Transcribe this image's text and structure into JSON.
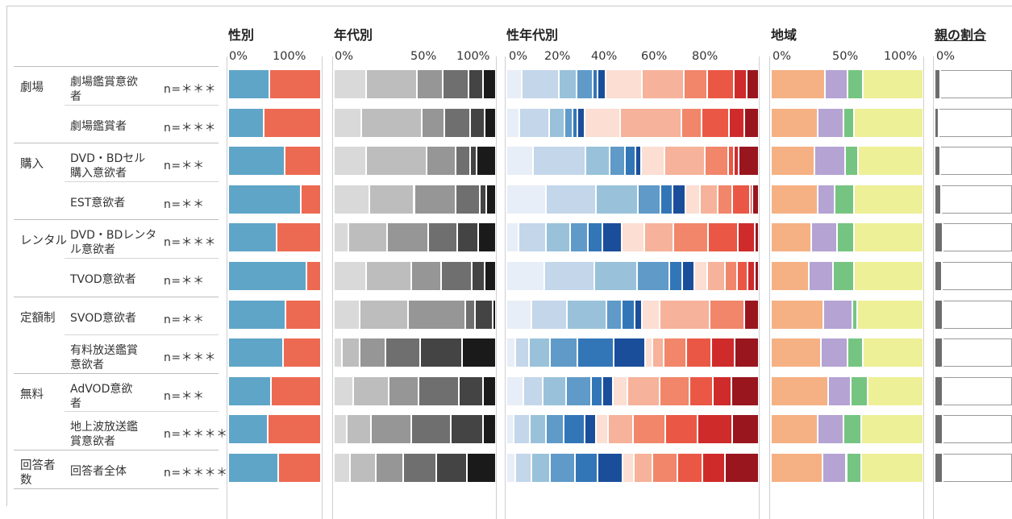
{
  "chart_data": {
    "type": "stacked_bar",
    "panels": [
      {
        "key": "gender",
        "title": "性別",
        "ticks": [
          "0%",
          "100%"
        ],
        "colors": [
          "#5fa5c8",
          "#ed6a52"
        ],
        "rows": [
          [
            45,
            55
          ],
          [
            39,
            61
          ],
          [
            62,
            38
          ],
          [
            80,
            20
          ],
          [
            53,
            47
          ],
          [
            86,
            14
          ],
          [
            63,
            37
          ],
          [
            60,
            40
          ],
          [
            47,
            53
          ],
          [
            43,
            57
          ],
          [
            55,
            45
          ]
        ]
      },
      {
        "key": "age",
        "title": "年代別",
        "ticks": [
          "0%",
          "50%",
          "100%"
        ],
        "colors": [
          "#f5f5f5",
          "#d9d9d9",
          "#bdbdbd",
          "#969696",
          "#6f6f6f",
          "#444444",
          "#1a1a1a"
        ],
        "rows": [
          [
            0,
            20,
            32,
            16,
            16,
            9,
            7
          ],
          [
            0,
            17,
            38,
            14,
            16,
            9,
            6
          ],
          [
            0,
            20,
            38,
            18,
            9,
            4,
            11
          ],
          [
            0,
            22,
            28,
            26,
            15,
            4,
            5
          ],
          [
            0,
            9,
            24,
            26,
            18,
            13,
            10
          ],
          [
            0,
            20,
            28,
            19,
            19,
            8,
            6
          ],
          [
            0,
            16,
            30,
            36,
            6,
            11,
            1
          ],
          [
            0,
            5,
            11,
            16,
            22,
            26,
            20
          ],
          [
            0,
            12,
            22,
            19,
            25,
            15,
            7
          ],
          [
            0,
            8,
            15,
            25,
            25,
            20,
            7
          ],
          [
            0,
            10,
            16,
            17,
            21,
            19,
            17
          ]
        ]
      },
      {
        "key": "gender_age",
        "title": "性年代別",
        "ticks": [
          "0%",
          "20%",
          "40%",
          "60%",
          "80%"
        ],
        "colors": [
          "#e8eef7",
          "#c3d6ea",
          "#99c2da",
          "#5f9ac9",
          "#3376b8",
          "#1a4e9a",
          "#fcded3",
          "#f6b29a",
          "#f1866a",
          "#ea5845",
          "#cf2b2b",
          "#99161f"
        ],
        "rows": [
          [
            6,
            14,
            7,
            6,
            2,
            3,
            14,
            16,
            9,
            10,
            5,
            4
          ],
          [
            5,
            12,
            6,
            3,
            2,
            3,
            14,
            24,
            8,
            11,
            6,
            5
          ],
          [
            10,
            20,
            9,
            6,
            4,
            2,
            9,
            15,
            9,
            2,
            2,
            7
          ],
          [
            16,
            20,
            17,
            9,
            5,
            5,
            6,
            7,
            6,
            7,
            1,
            2
          ],
          [
            5,
            11,
            10,
            7,
            6,
            8,
            9,
            12,
            14,
            12,
            7,
            1
          ],
          [
            15,
            20,
            17,
            13,
            5,
            5,
            5,
            7,
            5,
            4,
            3,
            1
          ],
          [
            10,
            14,
            16,
            6,
            5,
            3,
            7,
            20,
            14,
            0,
            0,
            5
          ],
          [
            4,
            6,
            9,
            12,
            16,
            14,
            3,
            5,
            10,
            11,
            10,
            10
          ],
          [
            8,
            9,
            11,
            12,
            5,
            5,
            7,
            15,
            14,
            11,
            9,
            12
          ],
          [
            3,
            7,
            7,
            8,
            9,
            5,
            5,
            11,
            14,
            14,
            15,
            11
          ],
          [
            4,
            7,
            8,
            11,
            10,
            11,
            5,
            8,
            11,
            11,
            10,
            14
          ]
        ]
      },
      {
        "key": "region",
        "title": "地域",
        "ticks": [
          "0%",
          "50%",
          "100%"
        ],
        "colors": [
          "#f5b183",
          "#b4a3d3",
          "#76c481",
          "#eef097"
        ],
        "rows": [
          [
            36,
            15,
            10,
            39
          ],
          [
            31,
            17,
            7,
            45
          ],
          [
            29,
            20,
            9,
            42
          ],
          [
            31,
            11,
            13,
            45
          ],
          [
            27,
            17,
            11,
            45
          ],
          [
            25,
            16,
            14,
            45
          ],
          [
            35,
            19,
            3,
            43
          ],
          [
            33,
            18,
            10,
            39
          ],
          [
            38,
            15,
            11,
            36
          ],
          [
            31,
            17,
            12,
            40
          ],
          [
            34,
            16,
            10,
            40
          ]
        ]
      },
      {
        "key": "parent",
        "title": "親の割合",
        "ticks": [
          "0%"
        ],
        "colors": [
          "#6d6d6d",
          "#ffffff"
        ],
        "rows": [
          [
            7,
            93
          ],
          [
            5,
            95
          ],
          [
            7,
            95
          ],
          [
            8,
            92
          ],
          [
            11,
            89
          ],
          [
            9,
            91
          ],
          [
            11,
            89
          ],
          [
            10,
            90
          ],
          [
            10,
            90
          ],
          [
            10,
            90
          ],
          [
            11,
            89
          ]
        ]
      }
    ],
    "groups": [
      {
        "label": [
          "劇場"
        ],
        "start": 0,
        "end": 1
      },
      {
        "label": [
          "購入"
        ],
        "start": 2,
        "end": 3
      },
      {
        "label": [
          "レンタル"
        ],
        "start": 4,
        "end": 5
      },
      {
        "label": [
          "定額制"
        ],
        "start": 6,
        "end": 7
      },
      {
        "label": [
          "無料"
        ],
        "start": 8,
        "end": 9
      },
      {
        "label": [
          "回答者",
          "数"
        ],
        "start": 10,
        "end": 10
      }
    ],
    "rows": [
      {
        "label": [
          "劇場鑑賞意欲",
          "者"
        ],
        "n": "n=＊＊＊"
      },
      {
        "label": [
          "劇場鑑賞者"
        ],
        "n": "n=＊＊＊"
      },
      {
        "label": [
          "DVD・BDセル",
          "購入意欲者"
        ],
        "n": "n=＊＊"
      },
      {
        "label": [
          "EST意欲者"
        ],
        "n": "n=＊＊"
      },
      {
        "label": [
          "DVD・BDレンタ",
          "ル意欲者"
        ],
        "n": "n=＊＊＊"
      },
      {
        "label": [
          "TVOD意欲者"
        ],
        "n": "n=＊＊"
      },
      {
        "label": [
          "SVOD意欲者"
        ],
        "n": "n=＊＊"
      },
      {
        "label": [
          "有料放送鑑賞",
          "意欲者"
        ],
        "n": "n=＊＊＊"
      },
      {
        "label": [
          "AdVOD意欲",
          "者"
        ],
        "n": "n=＊＊"
      },
      {
        "label": [
          "地上波放送鑑",
          "賞意欲者"
        ],
        "n": "n=＊＊＊＊"
      },
      {
        "label": [
          "回答者全体"
        ],
        "n": "n=＊＊＊＊＊"
      }
    ]
  }
}
